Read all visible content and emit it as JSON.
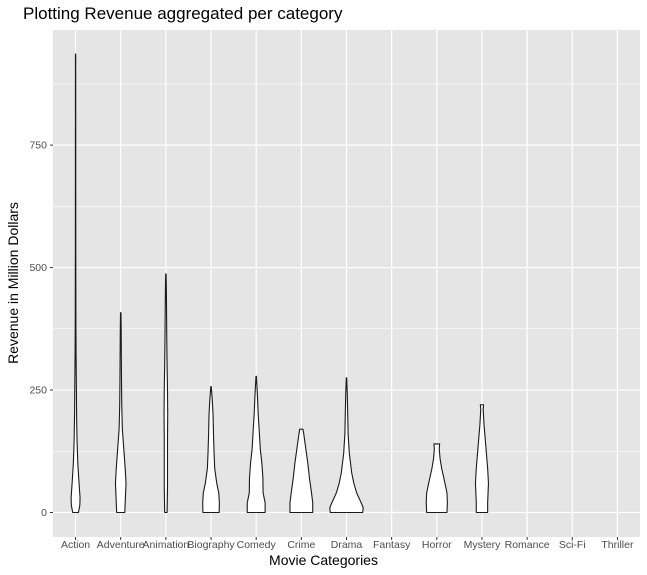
{
  "chart_data": {
    "type": "violin",
    "title": "Plotting Revenue aggregated per category",
    "xlabel": "Movie Categories",
    "ylabel": "Revenue in Million Dollars",
    "ylim": [
      -50,
      985
    ],
    "yticks": [
      0,
      250,
      500,
      750
    ],
    "grid": true,
    "legend": "none",
    "colors": {
      "panel": "#e5e5e5",
      "grid": "#ffffff",
      "fill": "#ffffff",
      "stroke": "#1a1a1a",
      "tick_text": "#4d4d4d"
    },
    "categories": [
      "Action",
      "Adventure",
      "Animation",
      "Biography",
      "Comedy",
      "Crime",
      "Drama",
      "Fantasy",
      "Horror",
      "Mystery",
      "Romance",
      "Sci-Fi",
      "Thriller"
    ],
    "violins": [
      {
        "category": "Action",
        "shape": [
          [
            0,
            0.14
          ],
          [
            15,
            0.21
          ],
          [
            30,
            0.22
          ],
          [
            60,
            0.17
          ],
          [
            100,
            0.11
          ],
          [
            150,
            0.07
          ],
          [
            200,
            0.05
          ],
          [
            250,
            0.04
          ],
          [
            320,
            0.025
          ],
          [
            400,
            0.015
          ],
          [
            550,
            0.01
          ],
          [
            750,
            0.008
          ],
          [
            936,
            0.006
          ]
        ]
      },
      {
        "category": "Adventure",
        "shape": [
          [
            0,
            0.2
          ],
          [
            30,
            0.23
          ],
          [
            60,
            0.26
          ],
          [
            90,
            0.22
          ],
          [
            130,
            0.15
          ],
          [
            170,
            0.08
          ],
          [
            220,
            0.05
          ],
          [
            260,
            0.04
          ],
          [
            320,
            0.03
          ],
          [
            380,
            0.02
          ],
          [
            408,
            0.01
          ]
        ]
      },
      {
        "category": "Animation",
        "shape": [
          [
            0,
            0.06
          ],
          [
            50,
            0.08
          ],
          [
            100,
            0.08
          ],
          [
            150,
            0.08
          ],
          [
            200,
            0.09
          ],
          [
            250,
            0.08
          ],
          [
            300,
            0.06
          ],
          [
            350,
            0.045
          ],
          [
            400,
            0.035
          ],
          [
            450,
            0.025
          ],
          [
            487,
            0.01
          ]
        ]
      },
      {
        "category": "Biography",
        "shape": [
          [
            0,
            0.4
          ],
          [
            20,
            0.41
          ],
          [
            40,
            0.38
          ],
          [
            60,
            0.28
          ],
          [
            90,
            0.18
          ],
          [
            120,
            0.15
          ],
          [
            160,
            0.12
          ],
          [
            200,
            0.1
          ],
          [
            230,
            0.06
          ],
          [
            257,
            0.01
          ]
        ]
      },
      {
        "category": "Comedy",
        "shape": [
          [
            0,
            0.44
          ],
          [
            20,
            0.44
          ],
          [
            40,
            0.34
          ],
          [
            70,
            0.33
          ],
          [
            100,
            0.28
          ],
          [
            130,
            0.2
          ],
          [
            160,
            0.16
          ],
          [
            200,
            0.1
          ],
          [
            240,
            0.06
          ],
          [
            278,
            0.01
          ]
        ]
      },
      {
        "category": "Crime",
        "shape": [
          [
            0,
            0.56
          ],
          [
            20,
            0.56
          ],
          [
            40,
            0.5
          ],
          [
            70,
            0.4
          ],
          [
            100,
            0.32
          ],
          [
            130,
            0.22
          ],
          [
            160,
            0.12
          ],
          [
            170,
            0.08
          ]
        ]
      },
      {
        "category": "Drama",
        "shape": [
          [
            0,
            0.8
          ],
          [
            10,
            0.82
          ],
          [
            20,
            0.72
          ],
          [
            40,
            0.5
          ],
          [
            60,
            0.36
          ],
          [
            80,
            0.26
          ],
          [
            120,
            0.14
          ],
          [
            160,
            0.08
          ],
          [
            200,
            0.06
          ],
          [
            240,
            0.04
          ],
          [
            275,
            0.01
          ]
        ]
      },
      {
        "category": "Horror",
        "shape": [
          [
            0,
            0.5
          ],
          [
            20,
            0.52
          ],
          [
            40,
            0.5
          ],
          [
            60,
            0.4
          ],
          [
            90,
            0.24
          ],
          [
            110,
            0.16
          ],
          [
            130,
            0.12
          ],
          [
            140,
            0.14
          ]
        ]
      },
      {
        "category": "Mystery",
        "shape": [
          [
            0,
            0.28
          ],
          [
            20,
            0.28
          ],
          [
            40,
            0.3
          ],
          [
            60,
            0.32
          ],
          [
            90,
            0.28
          ],
          [
            120,
            0.22
          ],
          [
            150,
            0.16
          ],
          [
            180,
            0.1
          ],
          [
            210,
            0.06
          ],
          [
            220,
            0.08
          ]
        ]
      }
    ]
  }
}
